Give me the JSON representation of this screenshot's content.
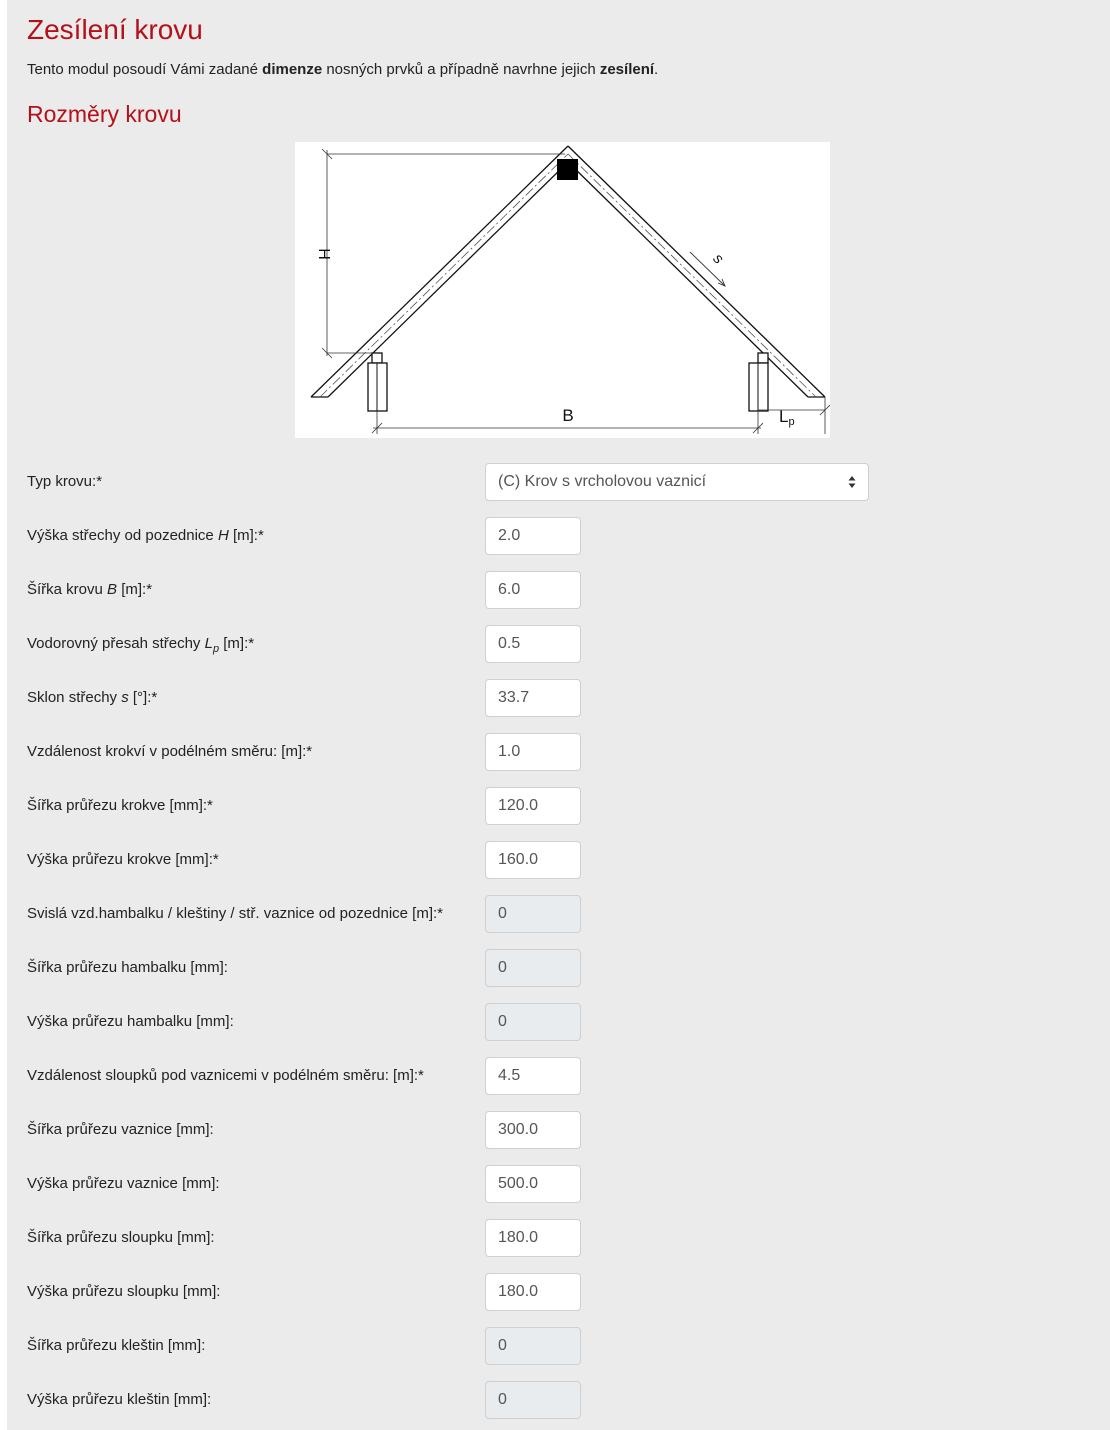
{
  "page": {
    "title": "Zesílení krovu",
    "intro": {
      "part1": "Tento modul posoudí Vámi zadané ",
      "bold1": "dimenze",
      "part2": " nosných prvků a případně navrhne jejich ",
      "bold2": "zesílení",
      "part3": "."
    },
    "section_title": "Rozměry krovu"
  },
  "diagram": {
    "label_h": "H",
    "label_s": "s",
    "label_b": "B",
    "label_lp": "L",
    "label_lp_sub": "p"
  },
  "form": {
    "roof_type": {
      "label": "Typ krovu:*",
      "value": "(C) Krov s vrcholovou vaznicí"
    },
    "height": {
      "label_before": "Výška střechy od pozednice ",
      "label_symbol": "H",
      "label_after": " [m]:*",
      "value": "2.0"
    },
    "width": {
      "label_before": "Šířka krovu ",
      "label_symbol": "B",
      "label_after": " [m]:*",
      "value": "6.0"
    },
    "overhang": {
      "label_before": "Vodorovný přesah střechy ",
      "label_symbol": "L",
      "label_sub": "p",
      "label_after": " [m]:*",
      "value": "0.5"
    },
    "slope": {
      "label_before": "Sklon střechy ",
      "label_symbol": "s",
      "label_after": " [°]:*",
      "value": "33.7"
    },
    "rafter_spacing": {
      "label": "Vzdálenost krokví v podélném směru: [m]:*",
      "value": "1.0"
    },
    "rafter_width": {
      "label": "Šířka průřezu krokve [mm]:*",
      "value": "120.0"
    },
    "rafter_height": {
      "label": "Výška průřezu krokve [mm]:*",
      "value": "160.0"
    },
    "collar_distance": {
      "label": "Svislá vzd.hambalku / kleštiny / stř. vaznice od pozednice [m]:*",
      "value": "0"
    },
    "collar_width": {
      "label": "Šířka průřezu hambalku [mm]:",
      "value": "0"
    },
    "collar_height": {
      "label": "Výška průřezu hambalku [mm]:",
      "value": "0"
    },
    "post_spacing": {
      "label": "Vzdálenost sloupků pod vaznicemi v podélném směru: [m]:*",
      "value": "4.5"
    },
    "purlin_width": {
      "label": "Šířka průřezu vaznice [mm]:",
      "value": "300.0"
    },
    "purlin_height": {
      "label": "Výška průřezu vaznice [mm]:",
      "value": "500.0"
    },
    "post_width": {
      "label": "Šířka průřezu sloupku [mm]:",
      "value": "180.0"
    },
    "post_height": {
      "label": "Výška průřezu sloupku [mm]:",
      "value": "180.0"
    },
    "tie_width": {
      "label": "Šířka průřezu kleštin [mm]:",
      "value": "0"
    },
    "tie_height": {
      "label": "Výška průřezu kleštin [mm]:",
      "value": "0"
    }
  },
  "colors": {
    "heading": "#b5101a",
    "panel_background": "#ebebeb",
    "disabled_field": "#e9ecef"
  }
}
